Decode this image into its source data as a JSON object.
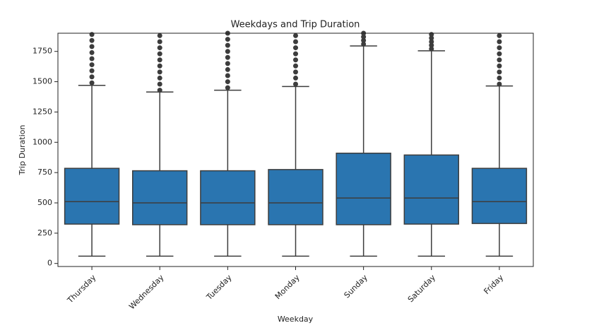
{
  "chart_data": {
    "type": "box",
    "title": "Weekdays and Trip Duration",
    "xlabel": "Weekday",
    "ylabel": "Trip Duration",
    "color": "#2a75b0",
    "ylim": [
      -25,
      1900
    ],
    "yticks": [
      0,
      250,
      500,
      750,
      1000,
      1250,
      1500,
      1750
    ],
    "categories": [
      "Thursday",
      "Wednesday",
      "Tuesday",
      "Monday",
      "Sunday",
      "Saturday",
      "Friday"
    ],
    "boxes": [
      {
        "whislo": 60,
        "q1": 325,
        "med": 510,
        "q3": 785,
        "whishi": 1470,
        "fliers": [
          1490,
          1540,
          1590,
          1640,
          1690,
          1740,
          1790,
          1840,
          1890
        ]
      },
      {
        "whislo": 60,
        "q1": 320,
        "med": 500,
        "q3": 765,
        "whishi": 1415,
        "fliers": [
          1430,
          1480,
          1530,
          1580,
          1630,
          1680,
          1730,
          1780,
          1830,
          1880
        ]
      },
      {
        "whislo": 60,
        "q1": 320,
        "med": 500,
        "q3": 765,
        "whishi": 1430,
        "fliers": [
          1450,
          1500,
          1550,
          1600,
          1650,
          1700,
          1750,
          1800,
          1850,
          1900
        ]
      },
      {
        "whislo": 60,
        "q1": 320,
        "med": 500,
        "q3": 775,
        "whishi": 1460,
        "fliers": [
          1480,
          1530,
          1580,
          1630,
          1680,
          1730,
          1780,
          1830,
          1880
        ]
      },
      {
        "whislo": 60,
        "q1": 320,
        "med": 540,
        "q3": 910,
        "whishi": 1795,
        "fliers": [
          1810,
          1840,
          1870,
          1900
        ]
      },
      {
        "whislo": 60,
        "q1": 325,
        "med": 540,
        "q3": 895,
        "whishi": 1755,
        "fliers": [
          1770,
          1800,
          1830,
          1860,
          1890
        ]
      },
      {
        "whislo": 60,
        "q1": 330,
        "med": 510,
        "q3": 785,
        "whishi": 1465,
        "fliers": [
          1480,
          1530,
          1580,
          1630,
          1680,
          1730,
          1780,
          1830,
          1880
        ]
      }
    ]
  }
}
